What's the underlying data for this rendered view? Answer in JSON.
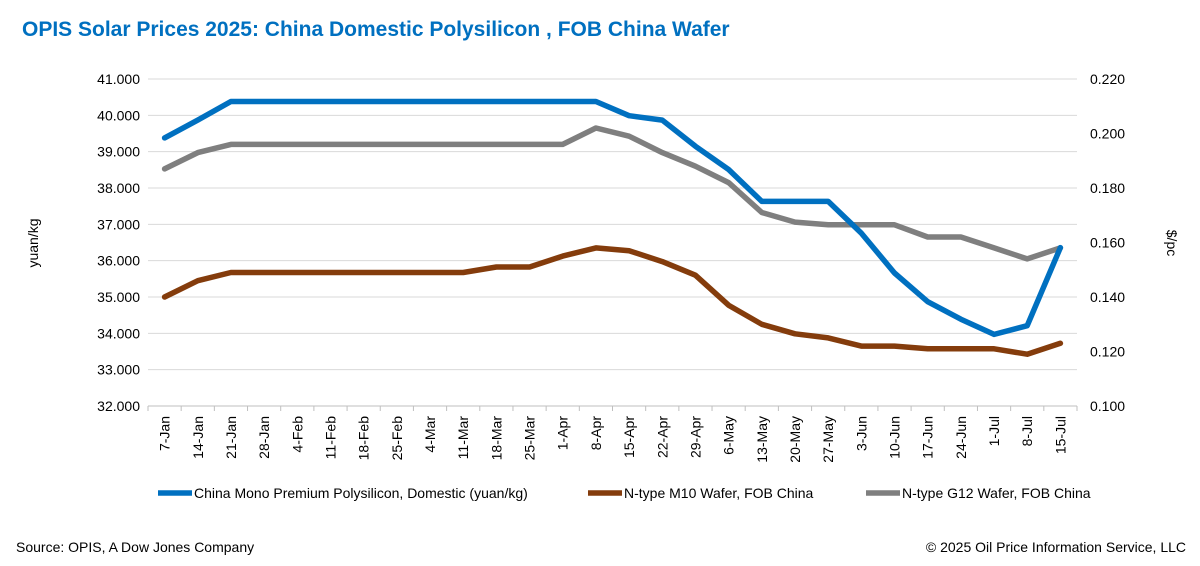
{
  "chart_data": {
    "type": "line",
    "title": "OPIS Solar Prices 2025: China Domestic Polysilicon , FOB China Wafer",
    "ylabel": "yuan/kg",
    "y2label": "$/pc",
    "ylim": [
      32000,
      41000
    ],
    "y_ticks": [
      "32.000",
      "33.000",
      "34.000",
      "35.000",
      "36.000",
      "37.000",
      "38.000",
      "39.000",
      "40.000",
      "41.000"
    ],
    "y2lim": [
      0.1,
      0.22
    ],
    "y2_ticks": [
      "0.100",
      "0.120",
      "0.140",
      "0.160",
      "0.180",
      "0.200",
      "0.220"
    ],
    "x": [
      "7-Jan",
      "14-Jan",
      "21-Jan",
      "28-Jan",
      "4-Feb",
      "11-Feb",
      "18-Feb",
      "25-Feb",
      "4-Mar",
      "11-Mar",
      "18-Mar",
      "25-Mar",
      "1-Apr",
      "8-Apr",
      "15-Apr",
      "22-Apr",
      "29-Apr",
      "6-May",
      "13-May",
      "20-May",
      "27-May",
      "3-Jun",
      "10-Jun",
      "17-Jun",
      "24-Jun",
      "1-Jul",
      "8-Jul",
      "15-Jul"
    ],
    "grid": true,
    "legend": "bottom",
    "series": [
      {
        "name": "China Mono Premium Polysilicon, Domestic (yuan/kg)",
        "axis": "left",
        "color": "#0070c0",
        "values": [
          39380,
          39870,
          40380,
          40380,
          40380,
          40380,
          40380,
          40380,
          40380,
          40380,
          40380,
          40380,
          40380,
          40380,
          39990,
          39870,
          39150,
          38510,
          37630,
          37630,
          37630,
          36760,
          35660,
          34870,
          34390,
          33970,
          34210,
          36360
        ]
      },
      {
        "name": "N-type M10 Wafer, FOB China",
        "axis": "right",
        "color": "#843c0c",
        "values": [
          0.14,
          0.146,
          0.149,
          0.149,
          0.149,
          0.149,
          0.149,
          0.149,
          0.149,
          0.149,
          0.151,
          0.151,
          0.155,
          0.158,
          0.157,
          0.153,
          0.148,
          0.137,
          0.13,
          0.1265,
          0.125,
          0.122,
          0.122,
          0.121,
          0.121,
          0.121,
          0.119,
          0.123
        ]
      },
      {
        "name": "N-type G12 Wafer, FOB China",
        "axis": "right",
        "color": "#7f7f7f",
        "values": [
          0.187,
          0.193,
          0.196,
          0.196,
          0.196,
          0.196,
          0.196,
          0.196,
          0.196,
          0.196,
          0.196,
          0.196,
          0.196,
          0.202,
          0.199,
          0.193,
          0.188,
          0.182,
          0.171,
          0.1675,
          0.1665,
          0.1665,
          0.1665,
          0.162,
          0.162,
          0.158,
          0.154,
          0.158
        ]
      }
    ]
  },
  "footer": {
    "source": "Source: OPIS, A Dow Jones Company",
    "copyright": "© 2025 Oil Price Information Service, LLC"
  }
}
